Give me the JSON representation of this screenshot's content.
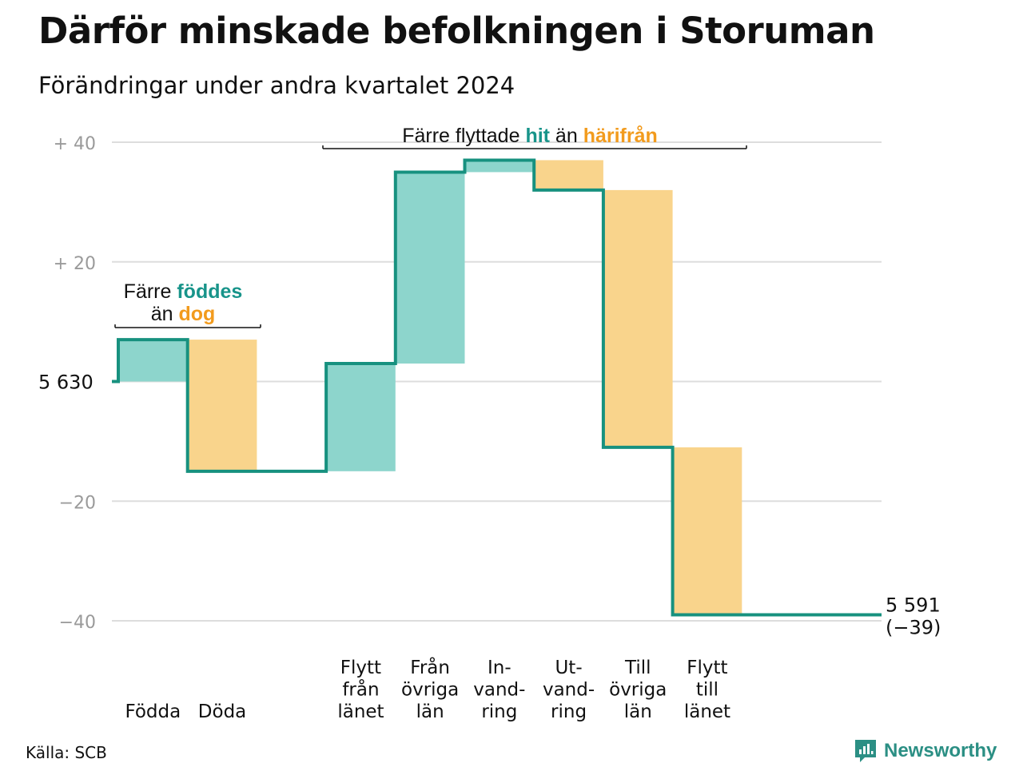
{
  "title": "Därför minskade befolkningen i Storuman",
  "subtitle": "Förändringar under andra kvartalet 2024",
  "source": "Källa: SCB",
  "brand": {
    "name": "Newsworthy",
    "icon": "newsworthy-logo-icon"
  },
  "colors": {
    "increase": "#8dd5cc",
    "decrease": "#f9d48c",
    "line": "#17917f",
    "teal_text": "#18948a",
    "orange_text": "#f29b1d",
    "grid": "#dddddd",
    "tick_text": "#9a9a9a"
  },
  "chart_data": {
    "type": "waterfall",
    "start_value": 5630,
    "start_label": "5 630",
    "end_value": 5591,
    "end_label": "5 591",
    "end_change_label": "(−39)",
    "ylim": [
      -40,
      40
    ],
    "yticks": [
      {
        "value": 40,
        "label": "+ 40"
      },
      {
        "value": 20,
        "label": "+ 20"
      },
      {
        "value": 0,
        "label": "5 630"
      },
      {
        "value": -20,
        "label": "−20"
      },
      {
        "value": -40,
        "label": "−40"
      }
    ],
    "grid": true,
    "steps": [
      {
        "label": [
          "Födda"
        ],
        "change": 7
      },
      {
        "label": [
          "Döda"
        ],
        "change": -22
      },
      {
        "label": [],
        "change": 0
      },
      {
        "label": [
          "Flytt",
          "från",
          "länet"
        ],
        "change": 18
      },
      {
        "label": [
          "Från",
          "övriga",
          "län"
        ],
        "change": 32
      },
      {
        "label": [
          "In-",
          "vand-",
          "ring"
        ],
        "change": 2
      },
      {
        "label": [
          "Ut-",
          "vand-",
          "ring"
        ],
        "change": -5
      },
      {
        "label": [
          "Till",
          "övriga",
          "län"
        ],
        "change": -43
      },
      {
        "label": [
          "Flytt",
          "till",
          "länet"
        ],
        "change": -28
      },
      {
        "label": [],
        "change": 0
      }
    ],
    "annotations": [
      {
        "lines": [
          [
            {
              "t": "Färre ",
              "c": "dark"
            },
            {
              "t": "föddes",
              "c": "teal"
            }
          ],
          [
            {
              "t": "än ",
              "c": "dark"
            },
            {
              "t": "dog",
              "c": "orange"
            }
          ]
        ]
      },
      {
        "lines": [
          [
            {
              "t": "Färre flyttade ",
              "c": "dark"
            },
            {
              "t": "hit",
              "c": "teal"
            },
            {
              "t": " än ",
              "c": "dark"
            },
            {
              "t": "härifrån",
              "c": "orange"
            }
          ]
        ]
      }
    ]
  }
}
